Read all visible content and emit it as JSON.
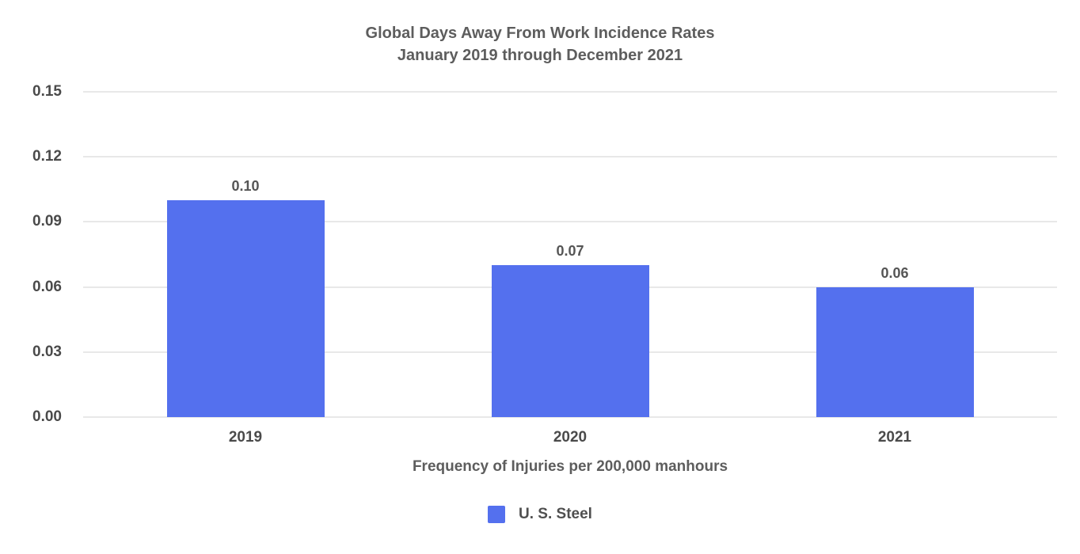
{
  "chart_data": {
    "type": "bar",
    "title": "Global Days Away From Work Incidence Rates",
    "subtitle": "January 2019 through December 2021",
    "xlabel": "Frequency of Injuries per 200,000 manhours",
    "ylabel": "",
    "categories": [
      "2019",
      "2020",
      "2021"
    ],
    "series": [
      {
        "name": "U. S. Steel",
        "values": [
          0.1,
          0.07,
          0.06
        ]
      }
    ],
    "value_labels": [
      "0.10",
      "0.07",
      "0.06"
    ],
    "ylim": [
      0,
      0.15
    ],
    "yticks": [
      "0.00",
      "0.03",
      "0.06",
      "0.09",
      "0.12",
      "0.15"
    ],
    "grid": true,
    "legend_position": "bottom",
    "colors": {
      "bar": "#5470ee",
      "gridline": "#e8e8e8",
      "title_text": "#5d5d5d",
      "tick_text": "#4a4a4a"
    }
  }
}
